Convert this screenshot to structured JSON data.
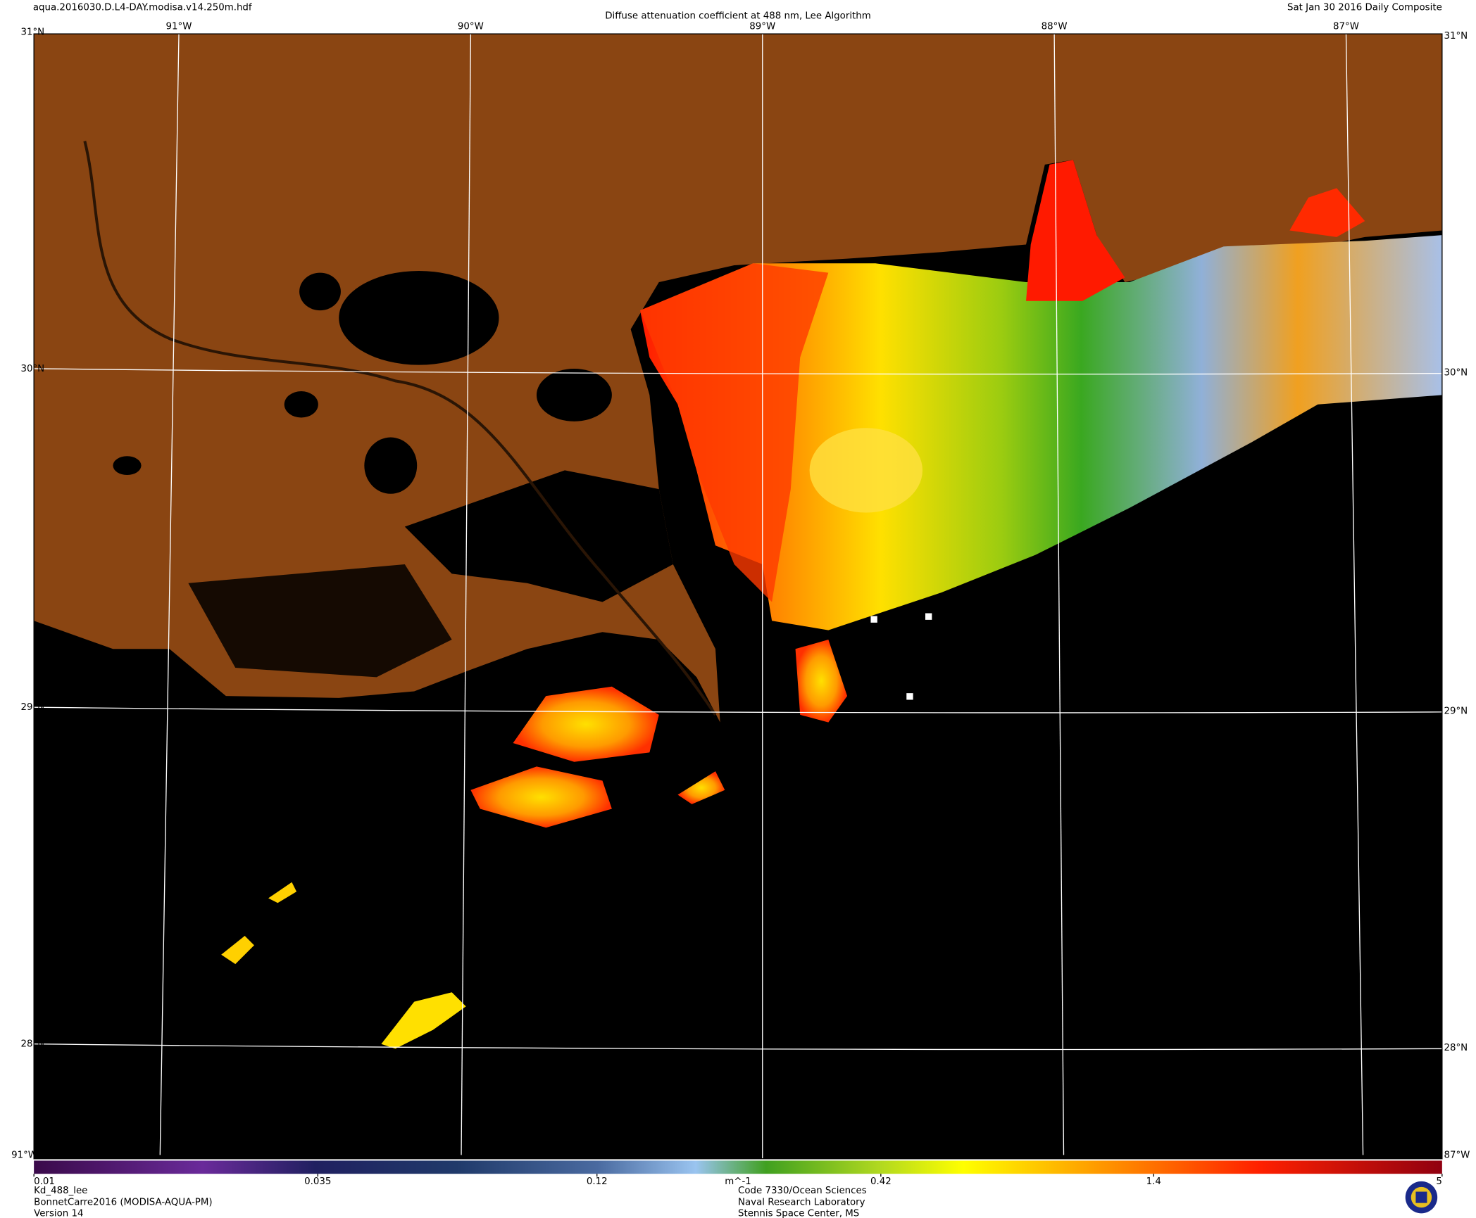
{
  "header": {
    "filename": "aqua.2016030.D.L4-DAY.modisa.v14.250m.hdf",
    "title": "Diffuse attenuation coefficient at 488 nm, Lee Algorithm",
    "date": "Sat Jan 30 2016 Daily Composite"
  },
  "graticule": {
    "lon_labels": [
      "91°W",
      "90°W",
      "89°W",
      "88°W",
      "87°W"
    ],
    "lat_labels": [
      "31°N",
      "30°N",
      "29°N",
      "28°N"
    ]
  },
  "colorbar": {
    "range": [
      0.01,
      5
    ],
    "log": true,
    "ticks": [
      0.01,
      0.035,
      0.12,
      0.42,
      1.4,
      5
    ],
    "unit": "m^-1"
  },
  "footer": {
    "left": [
      "Kd_488_lee",
      "BonnetCarre2016 (MODISA-AQUA-PM)",
      "Version 14"
    ],
    "center": [
      "Code 7330/Ocean Sciences",
      "Naval Research Laboratory",
      "Stennis Space Center, MS"
    ]
  }
}
